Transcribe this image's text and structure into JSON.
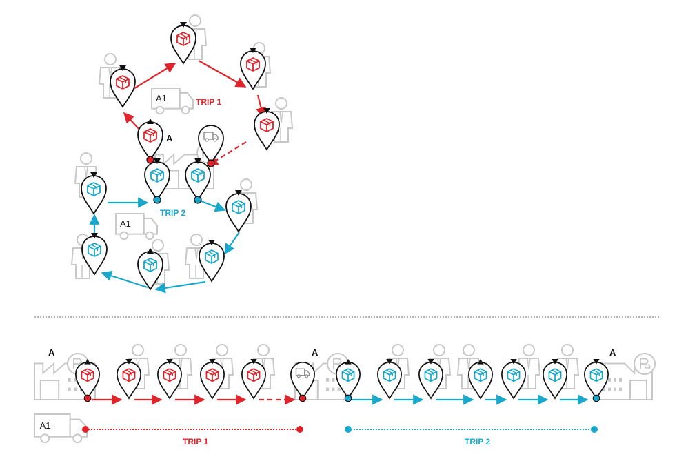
{
  "colors": {
    "trip1": "#e0242c",
    "trip2": "#19a8cc",
    "outline": "#c8c8c8",
    "pin": "#111111",
    "divider": "#888888"
  },
  "labels": {
    "depot": "A",
    "vehicle": "A1",
    "trip1": "TRIP 1",
    "trip2": "TRIP 2"
  },
  "icons": {
    "customer": "person-icon",
    "pickup": "box-icon",
    "vehicle": "truck-icon",
    "depot": "factory-icon",
    "parking": "parking-icon"
  },
  "legend": {
    "up_arrow": "pickup",
    "down_arrow": "delivery"
  }
}
